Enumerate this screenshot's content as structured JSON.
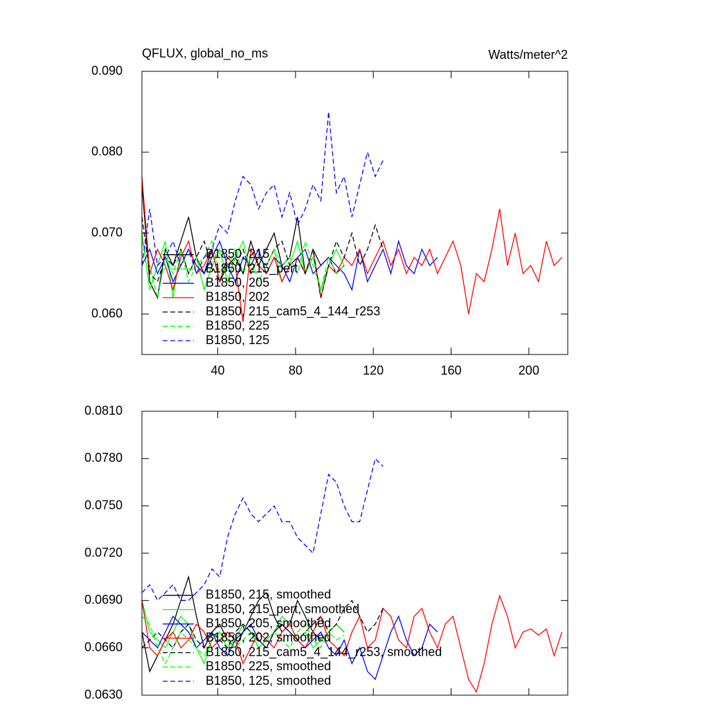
{
  "chart_data": [
    {
      "type": "line",
      "title": "QFLUX, global_no_ms",
      "units": "Watts/meter^2",
      "xlim": [
        1,
        220
      ],
      "xticks": [
        40,
        80,
        120,
        160,
        200
      ],
      "ylim": [
        0.055,
        0.09
      ],
      "yticks": [
        {
          "value": 0.06,
          "label": "0.060"
        },
        {
          "value": 0.07,
          "label": "0.070"
        },
        {
          "value": 0.08,
          "label": "0.080"
        },
        {
          "value": 0.09,
          "label": "0.090"
        }
      ],
      "legend": "lower left",
      "x": [
        1,
        5,
        9,
        13,
        17,
        21,
        25,
        29,
        33,
        37,
        41,
        45,
        49,
        53,
        57,
        61,
        65,
        69,
        73,
        77,
        81,
        85,
        89,
        93,
        97,
        101,
        105,
        109,
        113,
        117,
        121,
        125,
        129,
        133,
        137,
        141,
        145,
        149,
        153,
        157,
        161,
        165,
        169,
        173,
        177,
        181,
        185,
        189,
        193,
        197,
        201,
        205,
        209,
        213,
        217
      ],
      "series": [
        {
          "name": "B1850, 215",
          "color": "#000000",
          "dashed": false,
          "values": [
            0.076,
            0.064,
            0.062,
            0.068,
            0.066,
            0.069,
            0.072,
            0.067,
            0.065,
            0.068,
            0.064,
            0.066,
            0.067,
            0.065,
            0.069,
            0.066,
            0.068,
            0.07,
            0.066,
            0.067,
            0.072,
            0.065,
            0.068,
            0.066,
            0.067,
            0.065,
            0.066,
            null,
            null,
            null,
            null,
            null,
            null,
            null,
            null,
            null,
            null,
            null,
            null,
            null,
            null,
            null,
            null,
            null,
            null,
            null,
            null,
            null,
            null,
            null,
            null,
            null,
            null,
            null,
            null
          ]
        },
        {
          "name": "B1850, 215_pert",
          "color": "#00ff00",
          "dashed": false,
          "values": [
            0.07,
            0.063,
            0.066,
            0.069,
            0.062,
            0.068,
            0.065,
            0.067,
            0.063,
            0.066,
            0.068,
            0.064,
            0.067,
            0.069,
            0.065,
            0.067,
            0.066,
            0.068,
            0.064,
            0.066,
            0.069,
            0.065,
            0.067,
            0.063,
            0.066,
            0.068,
            0.066,
            null,
            null,
            null,
            null,
            null,
            null,
            null,
            null,
            null,
            null,
            null,
            null,
            null,
            null,
            null,
            null,
            null,
            null,
            null,
            null,
            null,
            null,
            null,
            null,
            null,
            null,
            null,
            null
          ]
        },
        {
          "name": "B1850, 205",
          "color": "#0000ff",
          "dashed": false,
          "values": [
            0.066,
            0.068,
            0.065,
            0.067,
            0.064,
            0.066,
            0.068,
            0.066,
            0.065,
            0.067,
            0.069,
            0.066,
            0.064,
            0.067,
            0.066,
            0.068,
            0.065,
            0.067,
            0.066,
            0.064,
            0.067,
            0.068,
            0.065,
            0.066,
            0.067,
            0.066,
            0.065,
            0.063,
            0.068,
            0.064,
            0.066,
            0.068,
            0.065,
            0.069,
            0.066,
            0.065,
            0.068,
            0.066,
            0.067,
            null,
            null,
            null,
            null,
            null,
            null,
            null,
            null,
            null,
            null,
            null,
            null,
            null,
            null,
            null,
            null
          ]
        },
        {
          "name": "B1850, 202",
          "color": "#ff0000",
          "dashed": false,
          "values": [
            0.077,
            0.065,
            0.068,
            0.066,
            0.063,
            0.067,
            0.069,
            0.065,
            0.066,
            0.068,
            0.064,
            0.067,
            0.066,
            0.059,
            0.068,
            0.066,
            0.065,
            0.067,
            0.064,
            0.066,
            0.067,
            0.065,
            0.068,
            0.062,
            0.066,
            0.065,
            0.067,
            0.066,
            0.068,
            0.065,
            0.067,
            0.069,
            0.066,
            0.068,
            0.065,
            0.067,
            0.066,
            0.068,
            0.065,
            0.067,
            0.069,
            0.066,
            0.06,
            0.065,
            0.064,
            0.068,
            0.073,
            0.066,
            0.07,
            0.065,
            0.066,
            0.064,
            0.069,
            0.066,
            0.067
          ]
        },
        {
          "name": "B1850, 215_cam5_4_144_r253",
          "color": "#000000",
          "dashed": true,
          "values": [
            0.072,
            0.065,
            0.064,
            0.067,
            0.066,
            0.068,
            0.065,
            0.067,
            0.069,
            0.066,
            0.064,
            0.067,
            0.066,
            0.068,
            0.065,
            0.067,
            0.066,
            0.068,
            0.069,
            0.066,
            0.067,
            0.065,
            0.068,
            0.062,
            0.066,
            0.069,
            0.067,
            0.07,
            0.066,
            0.068,
            0.071,
            0.068,
            null,
            null,
            null,
            null,
            null,
            null,
            null,
            null,
            null,
            null,
            null,
            null,
            null,
            null,
            null,
            null,
            null,
            null,
            null,
            null,
            null,
            null,
            null
          ]
        },
        {
          "name": "B1850, 225",
          "color": "#00ff00",
          "dashed": true,
          "values": [
            0.069,
            0.066,
            0.062,
            0.067,
            0.065,
            0.068,
            0.064,
            0.066,
            0.067,
            0.069,
            0.065,
            0.066,
            0.068,
            0.065,
            0.067,
            0.064,
            0.066,
            0.068,
            0.066,
            0.067,
            0.065,
            0.069,
            0.066,
            0.063,
            0.067,
            0.065,
            0.066,
            null,
            null,
            null,
            null,
            null,
            null,
            null,
            null,
            null,
            null,
            null,
            null,
            null,
            null,
            null,
            null,
            null,
            null,
            null,
            null,
            null,
            null,
            null,
            null,
            null,
            null,
            null,
            null
          ]
        },
        {
          "name": "B1850, 125",
          "color": "#0000ff",
          "dashed": true,
          "values": [
            0.066,
            0.073,
            0.066,
            0.067,
            0.069,
            0.066,
            0.068,
            0.065,
            0.067,
            0.068,
            0.071,
            0.07,
            0.074,
            0.077,
            0.076,
            0.073,
            0.075,
            0.076,
            0.072,
            0.075,
            0.071,
            0.073,
            0.076,
            0.074,
            0.085,
            0.075,
            0.077,
            0.072,
            0.076,
            0.08,
            0.077,
            0.079,
            null,
            null,
            null,
            null,
            null,
            null,
            null,
            null,
            null,
            null,
            null,
            null,
            null,
            null,
            null,
            null,
            null,
            null,
            null,
            null,
            null,
            null,
            null
          ]
        }
      ]
    },
    {
      "type": "line",
      "xlim": [
        1,
        220
      ],
      "xticks": [
        40,
        80,
        120,
        160,
        200
      ],
      "xtick_labels": false,
      "ylim": [
        0.063,
        0.081
      ],
      "yticks": [
        {
          "value": 0.063,
          "label": "0.0630"
        },
        {
          "value": 0.066,
          "label": "0.0660"
        },
        {
          "value": 0.069,
          "label": "0.0690"
        },
        {
          "value": 0.072,
          "label": "0.0720"
        },
        {
          "value": 0.075,
          "label": "0.0750"
        },
        {
          "value": 0.078,
          "label": "0.0780"
        },
        {
          "value": 0.081,
          "label": "0.0810"
        }
      ],
      "legend": "lower left",
      "x": [
        1,
        5,
        9,
        13,
        17,
        21,
        25,
        29,
        33,
        37,
        41,
        45,
        49,
        53,
        57,
        61,
        65,
        69,
        73,
        77,
        81,
        85,
        89,
        93,
        97,
        101,
        105,
        109,
        113,
        117,
        121,
        125,
        129,
        133,
        137,
        141,
        145,
        149,
        153,
        157,
        161,
        165,
        169,
        173,
        177,
        181,
        185,
        189,
        193,
        197,
        201,
        205,
        209,
        213,
        217
      ],
      "series": [
        {
          "name": "B1850, 215, smoothed",
          "color": "#000000",
          "dashed": false,
          "values": [
            0.067,
            0.0645,
            0.0655,
            0.0665,
            0.0675,
            0.069,
            0.0705,
            0.068,
            0.066,
            0.067,
            0.0675,
            0.0665,
            0.066,
            0.067,
            0.068,
            0.069,
            0.0695,
            0.068,
            0.067,
            0.0675,
            0.069,
            0.068,
            0.067,
            0.0665,
            0.067,
            0.0675,
            0.067,
            null,
            null,
            null,
            null,
            null,
            null,
            null,
            null,
            null,
            null,
            null,
            null,
            null,
            null,
            null,
            null,
            null,
            null,
            null,
            null,
            null,
            null,
            null,
            null,
            null,
            null,
            null,
            null
          ]
        },
        {
          "name": "B1850, 215_pert, smoothed",
          "color": "#00ff00",
          "dashed": false,
          "values": [
            0.069,
            0.067,
            0.0665,
            0.066,
            0.067,
            0.068,
            0.0675,
            0.066,
            0.065,
            0.0665,
            0.067,
            0.066,
            0.0665,
            0.0675,
            0.067,
            0.066,
            0.0665,
            0.067,
            0.068,
            0.0675,
            0.0665,
            0.067,
            0.066,
            0.0665,
            0.067,
            0.0675,
            0.067,
            null,
            null,
            null,
            null,
            null,
            null,
            null,
            null,
            null,
            null,
            null,
            null,
            null,
            null,
            null,
            null,
            null,
            null,
            null,
            null,
            null,
            null,
            null,
            null,
            null,
            null,
            null,
            null
          ]
        },
        {
          "name": "B1850, 205, smoothed",
          "color": "#0000ff",
          "dashed": false,
          "values": [
            0.067,
            0.0665,
            0.066,
            0.067,
            0.068,
            0.0675,
            0.067,
            0.066,
            0.0665,
            0.067,
            0.066,
            0.0655,
            0.0665,
            0.067,
            0.0675,
            0.0665,
            0.066,
            0.067,
            0.0675,
            0.067,
            0.0665,
            0.066,
            0.0665,
            0.067,
            0.066,
            0.0655,
            0.0665,
            0.065,
            0.066,
            0.0645,
            0.064,
            0.0655,
            0.067,
            0.068,
            0.0665,
            0.0655,
            0.066,
            0.0675,
            0.067,
            null,
            null,
            null,
            null,
            null,
            null,
            null,
            null,
            null,
            null,
            null,
            null,
            null,
            null,
            null,
            null
          ]
        },
        {
          "name": "B1850, 202, smoothed",
          "color": "#ff0000",
          "dashed": false,
          "values": [
            0.069,
            0.066,
            0.0655,
            0.0665,
            0.067,
            0.066,
            0.0665,
            0.0675,
            0.067,
            0.066,
            0.0665,
            0.067,
            0.0665,
            0.065,
            0.066,
            0.067,
            0.0665,
            0.066,
            0.067,
            0.0675,
            0.0665,
            0.066,
            0.067,
            0.068,
            0.0665,
            0.066,
            0.0655,
            0.067,
            0.068,
            0.066,
            0.0665,
            0.0685,
            0.068,
            0.0665,
            0.066,
            0.068,
            0.0685,
            0.067,
            0.066,
            0.0675,
            0.068,
            0.066,
            0.064,
            0.0632,
            0.065,
            0.0675,
            0.0693,
            0.068,
            0.066,
            0.067,
            0.0672,
            0.0668,
            0.0672,
            0.0655,
            0.067
          ]
        },
        {
          "name": "B1850, 215_cam5_4_144_r253, smoothed",
          "color": "#000000",
          "dashed": true,
          "values": [
            0.066,
            0.0665,
            0.067,
            0.0665,
            0.066,
            0.067,
            0.0675,
            0.0665,
            0.066,
            0.067,
            0.0665,
            0.066,
            0.067,
            0.0675,
            0.067,
            0.0665,
            0.066,
            0.067,
            0.0675,
            0.067,
            0.0665,
            0.067,
            0.0675,
            0.068,
            0.067,
            0.0675,
            0.0685,
            0.069,
            0.068,
            0.067,
            0.0675,
            0.0685,
            null,
            null,
            null,
            null,
            null,
            null,
            null,
            null,
            null,
            null,
            null,
            null,
            null,
            null,
            null,
            null,
            null,
            null,
            null,
            null,
            null,
            null,
            null
          ]
        },
        {
          "name": "B1850, 225, smoothed",
          "color": "#00ff00",
          "dashed": true,
          "values": [
            0.068,
            0.0675,
            0.066,
            0.065,
            0.066,
            0.067,
            0.0665,
            0.066,
            0.0655,
            0.0665,
            0.067,
            0.0665,
            0.066,
            0.0665,
            0.067,
            0.066,
            0.0665,
            0.067,
            0.0665,
            0.066,
            0.067,
            0.0675,
            0.0665,
            0.066,
            0.067,
            0.0665,
            0.0668,
            null,
            null,
            null,
            null,
            null,
            null,
            null,
            null,
            null,
            null,
            null,
            null,
            null,
            null,
            null,
            null,
            null,
            null,
            null,
            null,
            null,
            null,
            null,
            null,
            null,
            null,
            null,
            null
          ]
        },
        {
          "name": "B1850, 125, smoothed",
          "color": "#0000ff",
          "dashed": true,
          "values": [
            0.0695,
            0.07,
            0.069,
            0.0695,
            0.07,
            0.069,
            0.069,
            0.0695,
            0.07,
            0.071,
            0.0705,
            0.073,
            0.0745,
            0.0755,
            0.0745,
            0.074,
            0.0745,
            0.075,
            0.074,
            0.074,
            0.073,
            0.0725,
            0.072,
            0.0745,
            0.077,
            0.0765,
            0.075,
            0.074,
            0.074,
            0.076,
            0.078,
            0.0775,
            null,
            null,
            null,
            null,
            null,
            null,
            null,
            null,
            null,
            null,
            null,
            null,
            null,
            null,
            null,
            null,
            null,
            null,
            null,
            null,
            null,
            null,
            null
          ]
        }
      ]
    }
  ]
}
